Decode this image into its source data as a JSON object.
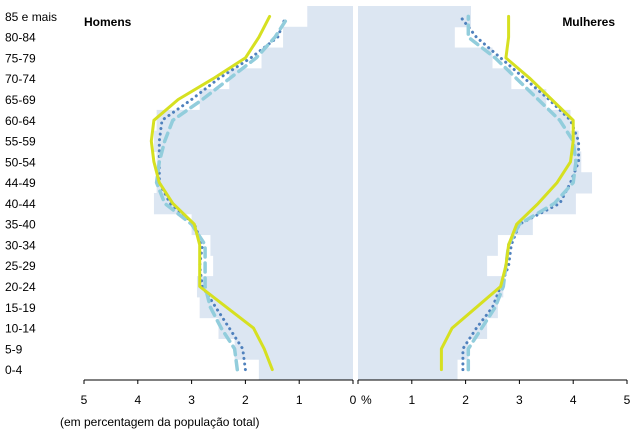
{
  "chart_data": {
    "type": "area",
    "left_title": "Homens",
    "right_title": "Mulheres",
    "caption": "(em percentagem da população total)",
    "x_unit_label": "%",
    "x_ticks_left": [
      "5",
      "4",
      "3",
      "2",
      "1",
      "0"
    ],
    "x_ticks_right": [
      "1",
      "2",
      "3",
      "4",
      "5"
    ],
    "xlim": [
      0,
      5
    ],
    "age_groups": [
      "0-4",
      "5-9",
      "10-14",
      "15-19",
      "20-24",
      "25-29",
      "30-34",
      "35-40",
      "40-44",
      "44-49",
      "50-54",
      "55-59",
      "60-64",
      "65-69",
      "70-74",
      "75-79",
      "80-84",
      "85 e mais"
    ],
    "series": [
      {
        "style": "filled-bars",
        "color": "#dce6f2",
        "men": [
          1.75,
          2.2,
          2.5,
          2.85,
          2.9,
          2.6,
          2.65,
          3.0,
          3.7,
          3.65,
          3.65,
          3.7,
          3.65,
          2.85,
          2.3,
          1.7,
          1.3,
          0.85
        ],
        "women": [
          1.85,
          2.05,
          2.4,
          2.6,
          2.7,
          2.4,
          2.6,
          3.25,
          4.05,
          4.35,
          4.15,
          4.1,
          3.95,
          3.5,
          2.85,
          2.5,
          1.8,
          2.1
        ]
      },
      {
        "style": "dotted",
        "color": "#4f81bd",
        "men": [
          2.0,
          2.05,
          2.3,
          2.55,
          2.8,
          2.85,
          2.8,
          2.95,
          3.4,
          3.6,
          3.6,
          3.6,
          3.55,
          3.0,
          2.5,
          1.9,
          1.4,
          1.25
        ],
        "women": [
          1.95,
          1.95,
          2.2,
          2.5,
          2.65,
          2.8,
          2.85,
          3.0,
          3.75,
          3.95,
          4.1,
          4.1,
          3.95,
          3.55,
          3.1,
          2.65,
          2.2,
          1.9
        ]
      },
      {
        "style": "dashed",
        "color": "#92cddc",
        "men": [
          2.15,
          2.2,
          2.45,
          2.65,
          2.75,
          2.75,
          2.75,
          3.0,
          3.5,
          3.65,
          3.6,
          3.5,
          3.35,
          2.8,
          2.3,
          1.8,
          1.45,
          1.2
        ],
        "women": [
          2.05,
          2.05,
          2.3,
          2.55,
          2.7,
          2.75,
          2.8,
          3.0,
          3.65,
          4.0,
          4.05,
          4.0,
          3.75,
          3.35,
          2.95,
          2.55,
          2.05,
          2.05
        ]
      },
      {
        "style": "solid",
        "color": "#d6e021",
        "men": [
          1.5,
          1.65,
          1.85,
          2.35,
          2.85,
          2.85,
          2.85,
          2.95,
          3.35,
          3.6,
          3.7,
          3.75,
          3.7,
          3.25,
          2.6,
          2.0,
          1.75,
          1.55
        ],
        "women": [
          1.55,
          1.55,
          1.75,
          2.2,
          2.65,
          2.75,
          2.8,
          2.95,
          3.35,
          3.7,
          3.95,
          4.0,
          4.0,
          3.6,
          3.2,
          2.75,
          2.8,
          2.8
        ]
      }
    ]
  }
}
